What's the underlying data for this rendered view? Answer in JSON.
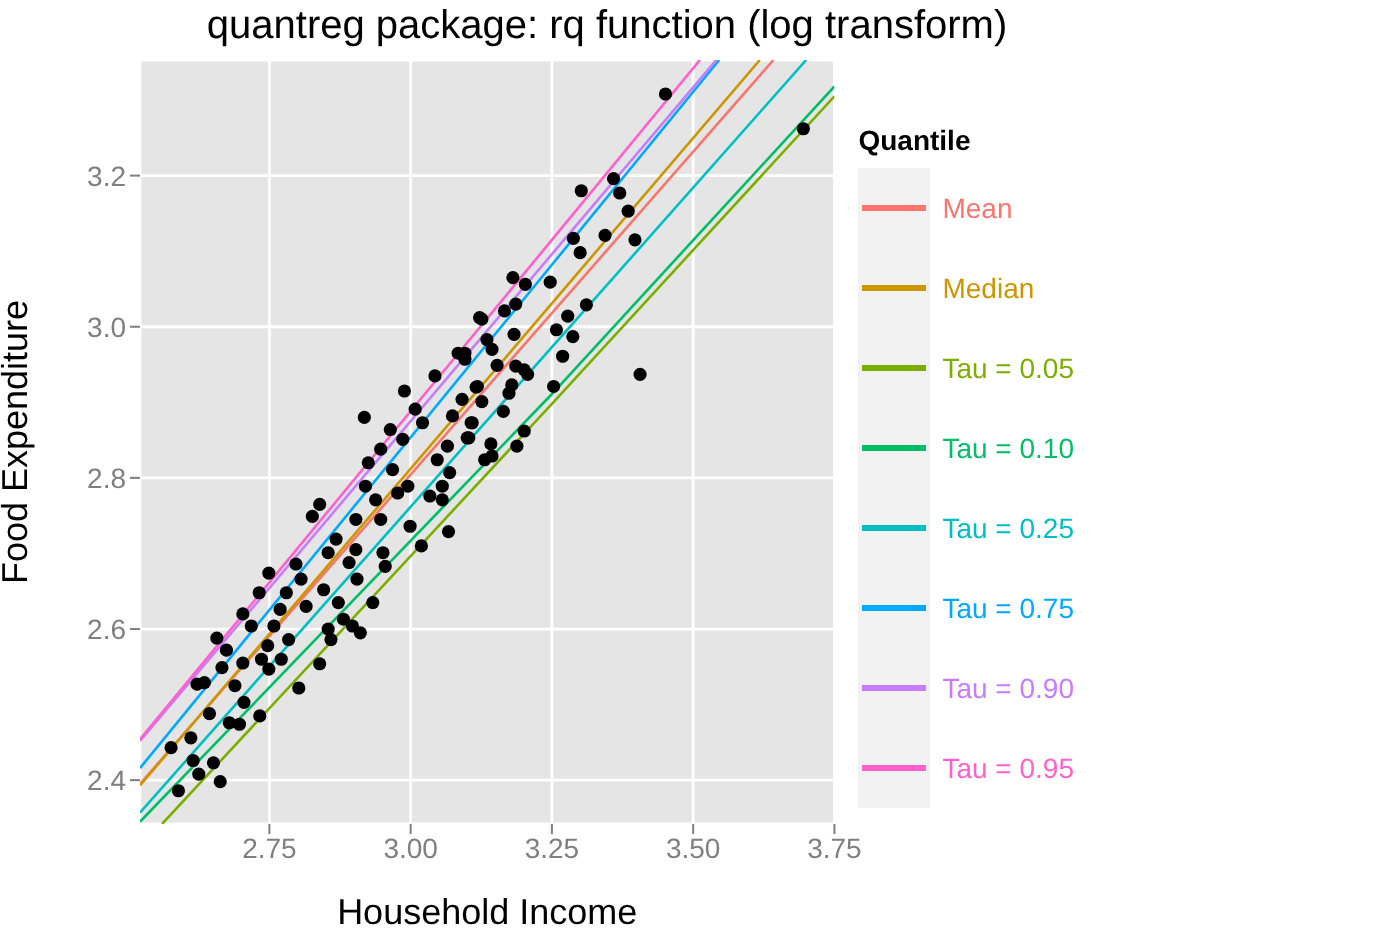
{
  "chart_data": {
    "type": "scatter",
    "title": "quantreg package: rq function (log transform)",
    "xlabel": "Household Income",
    "ylabel": "Food Expenditure",
    "legend_title": "Quantile",
    "legend": "right",
    "grid": true,
    "marker": "circle",
    "line_style": "solid",
    "xlim": [
      2.521,
      3.75
    ],
    "xticks": [
      {
        "value": 2.75,
        "label": "2.75"
      },
      {
        "value": 3.0,
        "label": "3.00"
      },
      {
        "value": 3.25,
        "label": "3.25"
      },
      {
        "value": 3.5,
        "label": "3.50"
      },
      {
        "value": 3.75,
        "label": "3.75"
      }
    ],
    "ylim": [
      2.342,
      3.353
    ],
    "yticks": [
      2.4,
      2.6,
      2.8,
      {
        "value": 3.0,
        "label": "3.0"
      },
      3.2
    ],
    "series": [
      {
        "color": "#000000",
        "x": [
          2.576,
          2.589,
          2.611,
          2.615,
          2.625,
          2.622,
          2.635,
          2.644,
          2.651,
          2.663,
          2.657,
          2.674,
          2.666,
          2.679,
          2.697,
          2.689,
          2.705,
          2.703,
          2.703,
          2.718,
          2.732,
          2.749,
          2.733,
          2.736,
          2.747,
          2.758,
          2.769,
          2.78,
          2.749,
          2.771,
          2.784,
          2.802,
          2.797,
          2.806,
          2.815,
          2.826,
          2.839,
          2.839,
          2.854,
          2.859,
          2.846,
          2.854,
          2.868,
          2.872,
          2.881,
          2.897,
          2.911,
          2.933,
          2.891,
          2.903,
          2.905,
          2.903,
          2.918,
          2.925,
          2.92,
          2.938,
          2.947,
          2.951,
          2.955,
          2.947,
          2.964,
          2.968,
          2.977,
          2.986,
          2.989,
          2.995,
          2.999,
          3.008,
          3.019,
          3.021,
          3.034,
          3.047,
          3.043,
          3.056,
          3.065,
          3.067,
          3.056,
          3.069,
          3.074,
          3.096,
          3.109,
          3.1,
          3.118,
          3.122,
          3.084,
          3.096,
          3.126,
          3.135,
          3.144,
          3.153,
          3.091,
          3.116,
          3.126,
          3.107,
          3.103,
          3.142,
          3.131,
          3.144,
          3.164,
          3.174,
          3.179,
          3.183,
          3.186,
          3.201,
          3.207,
          3.166,
          3.181,
          3.186,
          3.203,
          3.188,
          3.201,
          3.247,
          3.253,
          3.258,
          3.269,
          3.278,
          3.287,
          3.288,
          3.3,
          3.302,
          3.311,
          3.344,
          3.359,
          3.37,
          3.385,
          3.397,
          3.406,
          3.451,
          3.695
        ],
        "values": [
          2.443,
          2.386,
          2.456,
          2.426,
          2.408,
          2.527,
          2.529,
          2.488,
          2.423,
          2.398,
          2.588,
          2.572,
          2.549,
          2.476,
          2.474,
          2.525,
          2.503,
          2.555,
          2.62,
          2.604,
          2.648,
          2.674,
          2.485,
          2.56,
          2.578,
          2.604,
          2.626,
          2.648,
          2.547,
          2.56,
          2.586,
          2.522,
          2.686,
          2.666,
          2.63,
          2.749,
          2.765,
          2.554,
          2.6,
          2.586,
          2.652,
          2.701,
          2.719,
          2.635,
          2.613,
          2.604,
          2.595,
          2.635,
          2.688,
          2.705,
          2.666,
          2.745,
          2.88,
          2.82,
          2.789,
          2.771,
          2.745,
          2.701,
          2.683,
          2.838,
          2.864,
          2.811,
          2.78,
          2.851,
          2.915,
          2.789,
          2.736,
          2.891,
          2.71,
          2.873,
          2.776,
          2.824,
          2.935,
          2.789,
          2.842,
          2.729,
          2.771,
          2.807,
          2.882,
          2.965,
          2.873,
          2.853,
          2.921,
          3.012,
          2.965,
          2.957,
          3.01,
          2.983,
          2.97,
          2.949,
          2.904,
          2.92,
          2.901,
          2.873,
          2.853,
          2.845,
          2.824,
          2.829,
          2.888,
          2.912,
          2.923,
          2.99,
          2.948,
          2.943,
          2.937,
          3.021,
          3.065,
          3.03,
          3.056,
          2.842,
          2.862,
          3.059,
          2.921,
          2.996,
          2.961,
          3.014,
          2.987,
          3.117,
          3.098,
          3.18,
          3.029,
          3.121,
          3.196,
          3.177,
          3.153,
          3.115,
          2.937,
          3.308,
          3.262
        ]
      },
      {
        "type": "line",
        "marker": "none",
        "name": "Mean",
        "color": "#f8766d",
        "x": [
          2.521,
          3.25,
          3.642
        ],
        "values": [
          2.395,
          3.018,
          3.353
        ]
      },
      {
        "type": "line",
        "marker": "none",
        "name": "Median",
        "color": "#cd9600",
        "x": [
          2.521,
          3.25,
          3.618
        ],
        "values": [
          2.393,
          3.031,
          3.353
        ]
      },
      {
        "type": "line",
        "marker": "none",
        "name": "Tau = 0.05",
        "color": "#7cae00",
        "x": [
          2.56,
          3.25,
          3.75
        ],
        "values": [
          2.342,
          2.898,
          3.305
        ]
      },
      {
        "type": "line",
        "marker": "none",
        "name": "Tau = 0.10",
        "color": "#00be67",
        "x": [
          2.521,
          3.25,
          3.75
        ],
        "values": [
          2.345,
          2.911,
          3.318
        ]
      },
      {
        "type": "line",
        "marker": "none",
        "name": "Tau = 0.25",
        "color": "#00bfc4",
        "x": [
          2.521,
          3.25,
          3.7
        ],
        "values": [
          2.357,
          2.973,
          3.353
        ]
      },
      {
        "type": "line",
        "marker": "none",
        "name": "Tau = 0.75",
        "color": "#00a9ff",
        "x": [
          2.521,
          3.25,
          3.546
        ],
        "values": [
          2.416,
          3.082,
          3.353
        ]
      },
      {
        "type": "line",
        "marker": "none",
        "name": "Tau = 0.90",
        "color": "#c77cff",
        "x": [
          2.521,
          3.25,
          3.541
        ],
        "values": [
          2.452,
          3.096,
          3.353
        ]
      },
      {
        "type": "line",
        "marker": "none",
        "name": "Tau = 0.95",
        "color": "#ff61cc",
        "x": [
          2.521,
          3.25,
          3.512
        ],
        "values": [
          2.454,
          3.115,
          3.353
        ]
      }
    ]
  }
}
